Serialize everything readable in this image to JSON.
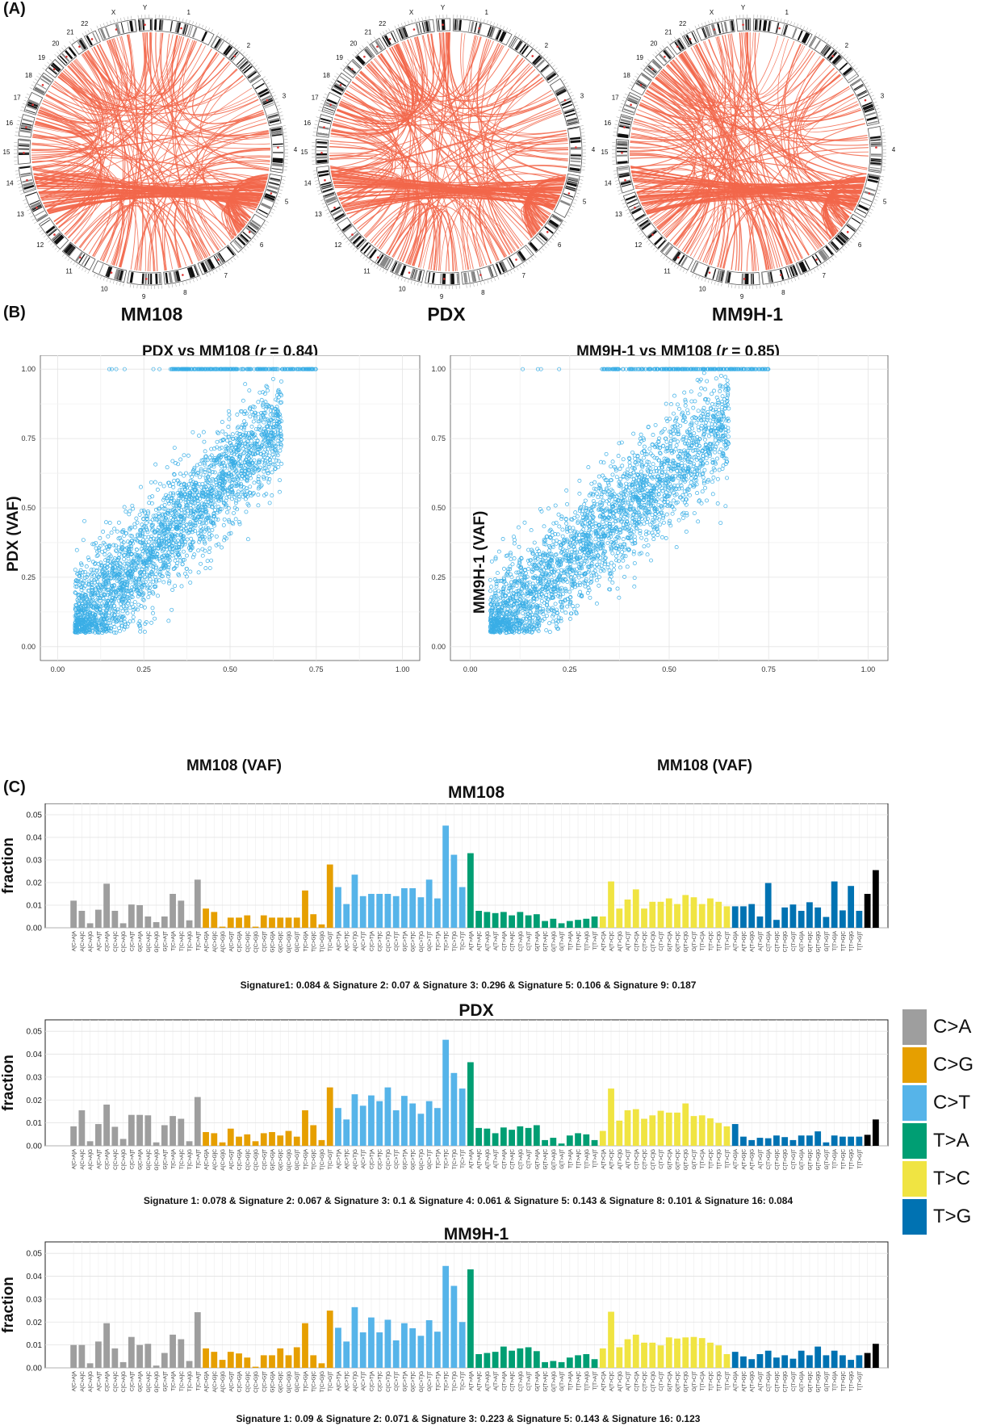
{
  "panels": {
    "a": "(A)",
    "b": "(B)",
    "c": "(C)"
  },
  "circos": {
    "chromosomes": [
      "1",
      "2",
      "3",
      "4",
      "5",
      "6",
      "7",
      "8",
      "9",
      "10",
      "11",
      "12",
      "13",
      "14",
      "15",
      "16",
      "17",
      "18",
      "19",
      "20",
      "21",
      "22",
      "X",
      "Y"
    ],
    "link_color": "#f2664a",
    "plots": [
      {
        "name": "MM108"
      },
      {
        "name": "PDX"
      },
      {
        "name": "MM9H-1"
      }
    ]
  },
  "scatter": {
    "point_color": "#3aaee6",
    "x_ticks": [
      "0.00",
      "0.25",
      "0.50",
      "0.75",
      "1.00"
    ],
    "y_ticks": [
      "0.00",
      "0.25",
      "0.50",
      "0.75",
      "1.00"
    ],
    "plots": [
      {
        "title_prefix": "PDX vs MM108 (",
        "r_symbol": "r",
        "r_value": " = 0.84)",
        "xlabel": "MM108 (VAF)",
        "ylabel": "PDX (VAF)",
        "r": 0.84
      },
      {
        "title_prefix": "MM9H-1 vs MM108 (",
        "r_symbol": "r",
        "r_value": " = 0.85)",
        "xlabel": "MM108 (VAF)",
        "ylabel": "MM9H-1 (VAF)",
        "r": 0.85
      }
    ]
  },
  "chart_data": [
    {
      "type": "scatter",
      "title": "PDX vs MM108 (r = 0.84)",
      "xlabel": "MM108 (VAF)",
      "ylabel": "PDX (VAF)",
      "xlim": [
        0,
        1
      ],
      "ylim": [
        0,
        1
      ],
      "r": 0.84
    },
    {
      "type": "scatter",
      "title": "MM9H-1 vs MM108 (r = 0.85)",
      "xlabel": "MM108 (VAF)",
      "ylabel": "MM9H-1 (VAF)",
      "xlim": [
        0,
        1
      ],
      "ylim": [
        0,
        1
      ],
      "r": 0.85
    },
    {
      "type": "bar",
      "title": "MM108",
      "ylabel": "fraction",
      "ylim": [
        0,
        0.055
      ],
      "values": [
        0.012,
        0.0075,
        0.002,
        0.008,
        0.0195,
        0.0075,
        0.002,
        0.0103,
        0.01,
        0.005,
        0.0025,
        0.005,
        0.015,
        0.012,
        0.0033,
        0.0213,
        0.0085,
        0.007,
        0.0005,
        0.0045,
        0.0045,
        0.0055,
        0.0005,
        0.0055,
        0.0045,
        0.0045,
        0.0045,
        0.0045,
        0.0165,
        0.006,
        0.0015,
        0.028,
        0.018,
        0.0105,
        0.0235,
        0.014,
        0.015,
        0.015,
        0.015,
        0.014,
        0.0175,
        0.0175,
        0.0135,
        0.0213,
        0.013,
        0.0452,
        0.0323,
        0.018,
        0.033,
        0.0075,
        0.007,
        0.0065,
        0.007,
        0.0055,
        0.007,
        0.0055,
        0.006,
        0.003,
        0.004,
        0.002,
        0.003,
        0.0035,
        0.004,
        0.005,
        0.005,
        0.0205,
        0.0085,
        0.0125,
        0.017,
        0.0085,
        0.0115,
        0.0115,
        0.013,
        0.0105,
        0.0145,
        0.0135,
        0.0105,
        0.013,
        0.0115,
        0.0095,
        0.0095,
        0.0095,
        0.0105,
        0.005,
        0.0198,
        0.0035,
        0.009,
        0.0103,
        0.0075,
        0.0113,
        0.009,
        0.0048,
        0.0205,
        0.0077,
        0.0185,
        0.0075,
        0.015,
        0.0255
      ],
      "signature_text": "Signature1: 0.084 & Signature 2: 0.07 & Signature 3: 0.296 & Signature 5: 0.106 & Signature 9: 0.187"
    },
    {
      "type": "bar",
      "title": "PDX",
      "ylabel": "fraction",
      "ylim": [
        0,
        0.055
      ],
      "values": [
        0.0085,
        0.0155,
        0.002,
        0.0095,
        0.018,
        0.0083,
        0.003,
        0.0135,
        0.0135,
        0.0133,
        0.0015,
        0.009,
        0.013,
        0.0118,
        0.002,
        0.0213,
        0.006,
        0.0055,
        0.0015,
        0.0075,
        0.004,
        0.005,
        0.002,
        0.0055,
        0.006,
        0.0045,
        0.0065,
        0.004,
        0.0155,
        0.009,
        0.0025,
        0.0255,
        0.0165,
        0.0115,
        0.0225,
        0.0175,
        0.022,
        0.0195,
        0.0255,
        0.0155,
        0.0218,
        0.0185,
        0.014,
        0.0195,
        0.0165,
        0.0463,
        0.0318,
        0.025,
        0.0365,
        0.0078,
        0.0075,
        0.0055,
        0.008,
        0.007,
        0.0085,
        0.0078,
        0.009,
        0.0025,
        0.0035,
        0.001,
        0.0045,
        0.0055,
        0.005,
        0.0025,
        0.0065,
        0.025,
        0.011,
        0.0155,
        0.016,
        0.0118,
        0.0133,
        0.0153,
        0.0145,
        0.0145,
        0.0185,
        0.013,
        0.0133,
        0.012,
        0.01,
        0.0085,
        0.0095,
        0.004,
        0.0025,
        0.0035,
        0.0033,
        0.0045,
        0.0038,
        0.0025,
        0.0045,
        0.0045,
        0.0063,
        0.0015,
        0.0045,
        0.004,
        0.004,
        0.004,
        0.0048,
        0.0115
      ],
      "signature_text": "Signature 1: 0.078 & Signature 2: 0.067 & Signature 3: 0.1 & Signature 4: 0.061 & Signature 5: 0.143 & Signature 8: 0.101 & Signature 16: 0.084"
    },
    {
      "type": "bar",
      "title": "MM9H-1",
      "ylabel": "fraction",
      "ylim": [
        0,
        0.055
      ],
      "values": [
        0.01,
        0.01,
        0.002,
        0.0115,
        0.0195,
        0.0085,
        0.0025,
        0.0135,
        0.01,
        0.0105,
        0.001,
        0.0065,
        0.0145,
        0.0125,
        0.003,
        0.0243,
        0.0085,
        0.007,
        0.0035,
        0.007,
        0.0063,
        0.0045,
        0.0005,
        0.0055,
        0.0055,
        0.0085,
        0.0055,
        0.009,
        0.0195,
        0.0055,
        0.002,
        0.025,
        0.0175,
        0.0115,
        0.0265,
        0.0155,
        0.022,
        0.0155,
        0.021,
        0.012,
        0.0195,
        0.0173,
        0.014,
        0.0208,
        0.0158,
        0.0445,
        0.0358,
        0.02,
        0.043,
        0.006,
        0.0065,
        0.007,
        0.0093,
        0.0075,
        0.0085,
        0.009,
        0.0073,
        0.0025,
        0.003,
        0.0025,
        0.0045,
        0.0055,
        0.006,
        0.0038,
        0.0085,
        0.0245,
        0.009,
        0.0125,
        0.0145,
        0.011,
        0.011,
        0.0098,
        0.0133,
        0.0128,
        0.0133,
        0.0135,
        0.013,
        0.011,
        0.0098,
        0.006,
        0.007,
        0.005,
        0.0038,
        0.006,
        0.0075,
        0.0045,
        0.0055,
        0.004,
        0.0075,
        0.0055,
        0.0093,
        0.0055,
        0.0075,
        0.0055,
        0.0035,
        0.0055,
        0.0065,
        0.0105
      ],
      "signature_text": "Signature 1: 0.09 & Signature 2: 0.071 & Signature 3: 0.223 & Signature 5: 0.143 & Signature 16: 0.123"
    }
  ],
  "signature_axis": {
    "ylabel": "fraction",
    "y_ticks": [
      "0.00",
      "0.01",
      "0.02",
      "0.03",
      "0.04",
      "0.05"
    ],
    "y_tick_values": [
      0,
      0.01,
      0.02,
      0.03,
      0.04,
      0.05
    ],
    "category_labels": [
      "A[C>A]A",
      "A[C>A]C",
      "A[C>A]G",
      "A[C>A]T",
      "C[C>A]A",
      "C[C>A]C",
      "C[C>A]G",
      "C[C>A]T",
      "G[C>A]A",
      "G[C>A]C",
      "G[C>A]G",
      "G[C>A]T",
      "T[C>A]A",
      "T[C>A]C",
      "T[C>A]G",
      "T[C>A]T",
      "A[C>G]A",
      "A[C>G]C",
      "A[C>G]G",
      "A[C>G]T",
      "C[C>G]A",
      "C[C>G]C",
      "C[C>G]G",
      "C[C>G]T",
      "G[C>G]A",
      "G[C>G]C",
      "G[C>G]G",
      "G[C>G]T",
      "T[C>G]A",
      "T[C>G]C",
      "T[C>G]G",
      "T[C>G]T",
      "A[C>T]A",
      "A[C>T]C",
      "A[C>T]G",
      "A[C>T]T",
      "C[C>T]A",
      "C[C>T]C",
      "C[C>T]G",
      "C[C>T]T",
      "G[C>T]A",
      "G[C>T]C",
      "G[C>T]G",
      "G[C>T]T",
      "T[C>T]A",
      "T[C>T]C",
      "T[C>T]G",
      "T[C>T]T",
      "A[T>A]A",
      "A[T>A]C",
      "A[T>A]G",
      "A[T>A]T",
      "C[T>A]A",
      "C[T>A]C",
      "C[T>A]G",
      "C[T>A]T",
      "G[T>A]A",
      "G[T>A]C",
      "G[T>A]G",
      "G[T>A]T",
      "T[T>A]A",
      "T[T>A]C",
      "T[T>A]G",
      "T[T>A]T",
      "A[T>C]A",
      "A[T>C]C",
      "A[T>C]G",
      "A[T>C]T",
      "C[T>C]A",
      "C[T>C]C",
      "C[T>C]G",
      "C[T>C]T",
      "G[T>C]A",
      "G[T>C]C",
      "G[T>C]G",
      "G[T>C]T",
      "T[T>C]A",
      "T[T>C]C",
      "T[T>C]G",
      "T[T>C]T",
      "A[T>G]A",
      "A[T>G]C",
      "A[T>G]G",
      "A[T>G]T",
      "C[T>G]A",
      "C[T>G]C",
      "C[T>G]G",
      "C[T>G]T",
      "G[T>G]A",
      "G[T>G]C",
      "G[T>G]G",
      "G[T>G]T",
      "T[T>G]A",
      "T[T>G]C",
      "T[T>G]G",
      "T[T>G]T"
    ]
  },
  "legend": [
    {
      "label": "C>A",
      "color": "#9e9e9e"
    },
    {
      "label": "C>G",
      "color": "#e69f00"
    },
    {
      "label": "C>T",
      "color": "#56b4e9"
    },
    {
      "label": "T>A",
      "color": "#009e73"
    },
    {
      "label": "T>C",
      "color": "#f0e442"
    },
    {
      "label": "T>G",
      "color": "#0072b2"
    }
  ]
}
